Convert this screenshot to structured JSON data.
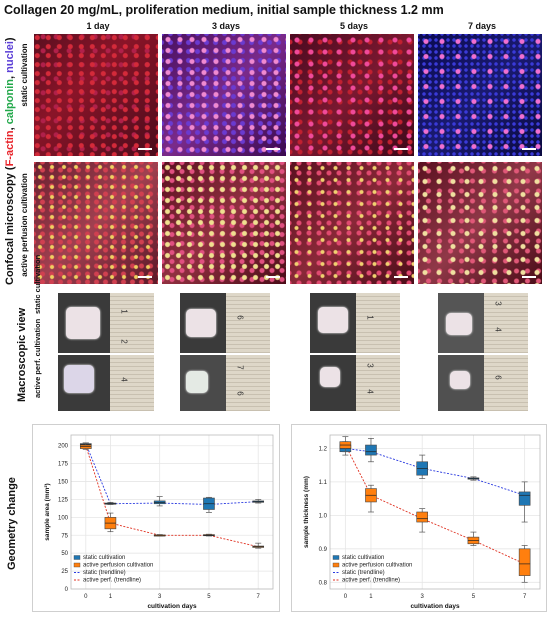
{
  "figure": {
    "title": "Collagen 20 mg/mL, proliferation medium, initial sample thickness 1.2 mm",
    "days": [
      "1 day",
      "3 days",
      "5 days",
      "7 days"
    ],
    "confocal_label": {
      "prefix": "Confocal microscopy (",
      "factin": "F-actin",
      "sep1": ", ",
      "calponin": "calponin",
      "sep2": ", ",
      "nuclei": "nuclei",
      "suffix": ")"
    },
    "confocal_rows": [
      "static cultivation",
      "active perfusion cultivation"
    ],
    "macroscopic_label": "Macroscopic view",
    "macro_rows": [
      "static cultivation",
      "active perf. cultivation"
    ],
    "ruler_numbers": {
      "d1_top": "1",
      "d1_mid": "2",
      "d1_bot": "4",
      "d3_top": "6",
      "d3_mid": "7",
      "d3_bot": "6",
      "d5_top": "1",
      "d5_mid": "3",
      "d5_bot": "4",
      "d7_top": "3",
      "d7_mid": "4",
      "d7_bot": "6"
    },
    "geometry_label": "Geometry change"
  },
  "colors": {
    "static": "#1f77b4",
    "active": "#ff7f0e",
    "factin": "#e8232a",
    "calponin": "#22a84a",
    "nuclei": "#5b3fd6"
  },
  "chart_data": [
    {
      "type": "box",
      "xlabel": "cultivation days",
      "ylabel": "sample area (mm²)",
      "x_ticks": [
        0,
        1,
        3,
        5,
        7
      ],
      "ylim": [
        0,
        215
      ],
      "y_ticks": [
        0,
        25,
        50,
        75,
        100,
        125,
        150,
        175,
        200
      ],
      "grid": true,
      "legend_position": "bottom-left",
      "legend": [
        "static cultivation",
        "active perfusion cultivation",
        "static (trendline)",
        "active perf. (trendline)"
      ],
      "series": [
        {
          "name": "static cultivation",
          "boxes": [
            {
              "x": 0,
              "min": 201,
              "q1": 201.5,
              "median": 202,
              "q3": 203,
              "max": 204
            },
            {
              "x": 1,
              "min": 118,
              "q1": 118.5,
              "median": 119,
              "q3": 120,
              "max": 121
            },
            {
              "x": 3,
              "min": 116,
              "q1": 119,
              "median": 121,
              "q3": 123,
              "max": 129
            },
            {
              "x": 5,
              "min": 107,
              "q1": 111,
              "median": 119,
              "q3": 127,
              "max": 128
            },
            {
              "x": 7,
              "min": 120,
              "q1": 121,
              "median": 122,
              "q3": 123,
              "max": 125
            }
          ],
          "trend": [
            203,
            119,
            120,
            118,
            122
          ]
        },
        {
          "name": "active perfusion cultivation",
          "boxes": [
            {
              "x": 0,
              "min": 195,
              "q1": 196,
              "median": 199,
              "q3": 201,
              "max": 204
            },
            {
              "x": 1,
              "min": 80,
              "q1": 84,
              "median": 92,
              "q3": 100,
              "max": 106
            },
            {
              "x": 3,
              "min": 74,
              "q1": 74.5,
              "median": 75,
              "q3": 75.5,
              "max": 76
            },
            {
              "x": 5,
              "min": 74,
              "q1": 74.5,
              "median": 75,
              "q3": 76,
              "max": 76.5
            },
            {
              "x": 7,
              "min": 57,
              "q1": 58,
              "median": 59,
              "q3": 60,
              "max": 64
            }
          ],
          "trend": [
            200,
            92,
            75,
            75,
            59
          ]
        }
      ]
    },
    {
      "type": "box",
      "xlabel": "cultivation days",
      "ylabel": "sample thickness (mm)",
      "x_ticks": [
        0,
        1,
        3,
        5,
        7
      ],
      "ylim": [
        0.78,
        1.24
      ],
      "y_ticks": [
        0.8,
        0.9,
        1.0,
        1.1,
        1.2
      ],
      "grid": true,
      "legend_position": "bottom-left",
      "legend": [
        "static cultivation",
        "active perfusion cultivation",
        "static (trendline)",
        "active perf. (trendline)"
      ],
      "series": [
        {
          "name": "static cultivation",
          "boxes": [
            {
              "x": 0,
              "min": 1.18,
              "q1": 1.19,
              "median": 1.2,
              "q3": 1.21,
              "max": 1.22
            },
            {
              "x": 1,
              "min": 1.16,
              "q1": 1.18,
              "median": 1.19,
              "q3": 1.21,
              "max": 1.23
            },
            {
              "x": 3,
              "min": 1.11,
              "q1": 1.12,
              "median": 1.14,
              "q3": 1.16,
              "max": 1.18
            },
            {
              "x": 5,
              "min": 1.105,
              "q1": 1.108,
              "median": 1.11,
              "q3": 1.112,
              "max": 1.115
            },
            {
              "x": 7,
              "min": 0.98,
              "q1": 1.03,
              "median": 1.06,
              "q3": 1.07,
              "max": 1.1
            }
          ],
          "trend": [
            1.2,
            1.19,
            1.14,
            1.11,
            1.06
          ]
        },
        {
          "name": "active perfusion cultivation",
          "boxes": [
            {
              "x": 0,
              "min": 1.19,
              "q1": 1.2,
              "median": 1.21,
              "q3": 1.22,
              "max": 1.235
            },
            {
              "x": 1,
              "min": 1.01,
              "q1": 1.04,
              "median": 1.06,
              "q3": 1.08,
              "max": 1.09
            },
            {
              "x": 3,
              "min": 0.95,
              "q1": 0.98,
              "median": 0.99,
              "q3": 1.01,
              "max": 1.02
            },
            {
              "x": 5,
              "min": 0.91,
              "q1": 0.915,
              "median": 0.925,
              "q3": 0.935,
              "max": 0.95
            },
            {
              "x": 7,
              "min": 0.8,
              "q1": 0.82,
              "median": 0.855,
              "q3": 0.9,
              "max": 0.91
            }
          ],
          "trend": [
            1.21,
            1.06,
            0.99,
            0.925,
            0.855
          ]
        }
      ]
    }
  ]
}
